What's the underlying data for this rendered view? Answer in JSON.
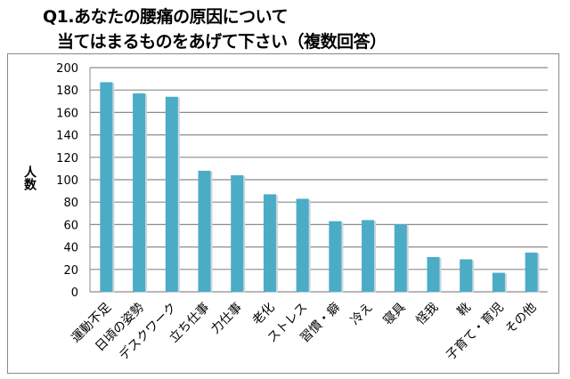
{
  "chart_data": {
    "type": "bar",
    "title": [
      "Q1.あなたの腰痛の原因について",
      "当てはまるものをあげて下さい（複数回答）"
    ],
    "xlabel": "",
    "ylabel": "人数",
    "ylim": [
      0,
      200
    ],
    "yticks": [
      0,
      20,
      40,
      60,
      80,
      100,
      120,
      140,
      160,
      180,
      200
    ],
    "grid": true,
    "categories": [
      "運動不足",
      "日頃の姿勢",
      "デスクワーク",
      "立ち仕事",
      "力仕事",
      "老化",
      "ストレス",
      "習慣・癖",
      "冷え",
      "寝具",
      "怪我",
      "靴",
      "子育て・育児",
      "その他"
    ],
    "values": [
      187,
      177,
      174,
      108,
      104,
      87,
      83,
      63,
      64,
      60,
      31,
      29,
      17,
      35
    ],
    "bar_color": "#4bacc6"
  }
}
